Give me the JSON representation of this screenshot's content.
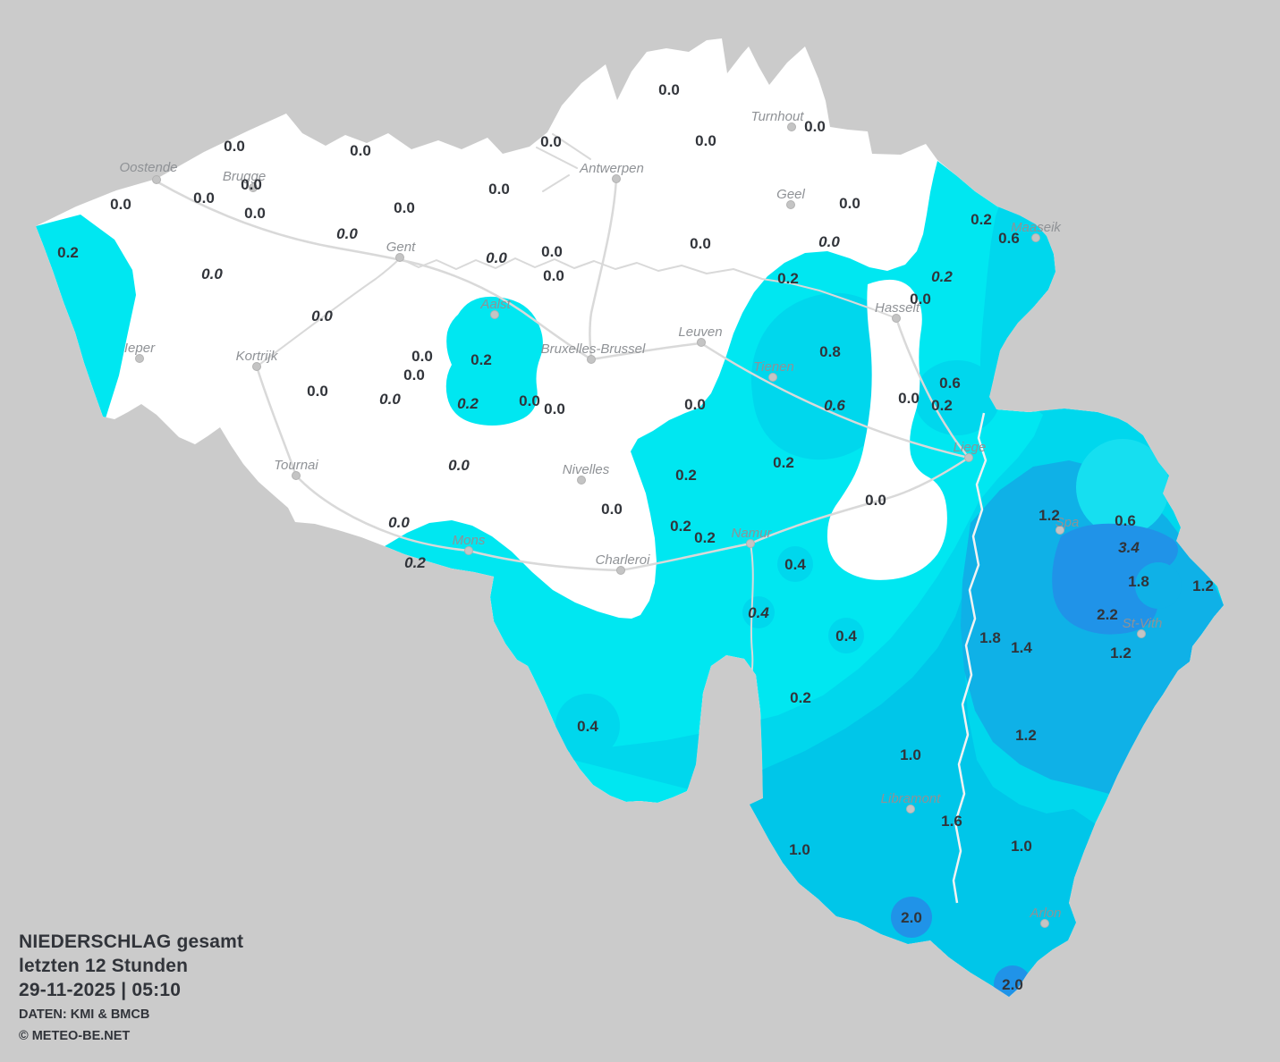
{
  "title_block": {
    "line1": "NIEDERSCHLAG gesamt",
    "line2": "letzten 12 Stunden",
    "line3": "29-11-2025  |  05:10",
    "line4": "DATEN: KMI & BMCB",
    "line5": "© METEO-BE.NET"
  },
  "colors": {
    "background": "#cbcbcb",
    "country": "#ffffff",
    "band02": "#00e7f1",
    "band06": "#00d7ed",
    "band06_light": "#16dff0",
    "band10": "#00c6e9",
    "band18": "#0fb1e7",
    "band34": "#2093e8",
    "value_text": "#31343a",
    "city_text": "#8f9296",
    "road": "#d9d9d9",
    "province_line": "#f2f2f2",
    "city_dot": "#c4c4c4"
  },
  "map": {
    "cities": [
      [
        "Oostende",
        175,
        201,
        166,
        192
      ],
      [
        "Brugge",
        283,
        210,
        273,
        202
      ],
      [
        "Turnhout",
        885,
        142,
        869,
        135
      ],
      [
        "Antwerpen",
        689,
        200,
        684,
        193
      ],
      [
        "Geel",
        884,
        229,
        884,
        222
      ],
      [
        "Maaseik",
        1158,
        266,
        1158,
        259
      ],
      [
        "Gent",
        447,
        288,
        448,
        281
      ],
      [
        "Hasselt",
        1002,
        356,
        1003,
        349
      ],
      [
        "Aalst",
        553,
        352,
        554,
        345
      ],
      [
        "Leuven",
        784,
        383,
        783,
        376
      ],
      [
        "Bruxelles-Brussel",
        661,
        402,
        663,
        395
      ],
      [
        "Ieper",
        156,
        401,
        156,
        394
      ],
      [
        "Kortrijk",
        287,
        410,
        287,
        403
      ],
      [
        "Tienen",
        864,
        422,
        865,
        415
      ],
      [
        "Liege",
        1083,
        512,
        1084,
        505
      ],
      [
        "Tournai",
        331,
        532,
        331,
        525
      ],
      [
        "Nivelles",
        650,
        537,
        655,
        530
      ],
      [
        "Spa",
        1185,
        593,
        1193,
        589
      ],
      [
        "Mons",
        524,
        616,
        524,
        609
      ],
      [
        "Namur",
        839,
        608,
        840,
        601
      ],
      [
        "Charleroi",
        694,
        638,
        696,
        631
      ],
      [
        "St-Vith",
        1276,
        709,
        1277,
        702
      ],
      [
        "Libramont",
        1018,
        905,
        1018,
        898
      ],
      [
        "Arlon",
        1168,
        1033,
        1169,
        1026
      ]
    ],
    "values": [
      [
        748,
        100,
        "0.0",
        0
      ],
      [
        911,
        141,
        "0.0",
        0
      ],
      [
        789,
        157,
        "0.0",
        0
      ],
      [
        262,
        163,
        "0.0",
        0
      ],
      [
        403,
        168,
        "0.0",
        0
      ],
      [
        616,
        158,
        "0.0",
        0
      ],
      [
        135,
        228,
        "0.0",
        0
      ],
      [
        228,
        221,
        "0.0",
        0
      ],
      [
        281,
        206,
        "0.0",
        0
      ],
      [
        285,
        238,
        "0.0",
        0
      ],
      [
        452,
        232,
        "0.0",
        0
      ],
      [
        558,
        211,
        "0.0",
        0
      ],
      [
        950,
        227,
        "0.0",
        0
      ],
      [
        1097,
        245,
        "0.2",
        0
      ],
      [
        1128,
        266,
        "0.6",
        0
      ],
      [
        388,
        261,
        "0.0",
        1
      ],
      [
        927,
        270,
        "0.0",
        1
      ],
      [
        783,
        272,
        "0.0",
        0
      ],
      [
        76,
        282,
        "0.2",
        0
      ],
      [
        237,
        306,
        "0.0",
        1
      ],
      [
        555,
        288,
        "0.0",
        1
      ],
      [
        617,
        281,
        "0.0",
        0
      ],
      [
        619,
        308,
        "0.0",
        0
      ],
      [
        1053,
        309,
        "0.2",
        1
      ],
      [
        881,
        311,
        "0.2",
        0
      ],
      [
        1029,
        334,
        "0.0",
        0
      ],
      [
        360,
        353,
        "0.0",
        1
      ],
      [
        472,
        398,
        "0.0",
        0
      ],
      [
        538,
        402,
        "0.2",
        0
      ],
      [
        463,
        419,
        "0.0",
        0
      ],
      [
        436,
        446,
        "0.0",
        1
      ],
      [
        523,
        451,
        "0.2",
        1
      ],
      [
        592,
        448,
        "0.0",
        0
      ],
      [
        620,
        457,
        "0.0",
        0
      ],
      [
        355,
        437,
        "0.0",
        0
      ],
      [
        1062,
        428,
        "0.6",
        0
      ],
      [
        1053,
        453,
        "0.2",
        0
      ],
      [
        928,
        393,
        "0.8",
        0
      ],
      [
        1016,
        445,
        "0.0",
        0
      ],
      [
        777,
        452,
        "0.0",
        0
      ],
      [
        933,
        453,
        "0.6",
        1
      ],
      [
        513,
        520,
        "0.0",
        1
      ],
      [
        767,
        531,
        "0.2",
        0
      ],
      [
        876,
        517,
        "0.2",
        0
      ],
      [
        684,
        569,
        "0.0",
        0
      ],
      [
        446,
        584,
        "0.0",
        1
      ],
      [
        464,
        629,
        "0.2",
        1
      ],
      [
        761,
        588,
        "0.2",
        0
      ],
      [
        788,
        601,
        "0.2",
        0
      ],
      [
        889,
        631,
        "0.4",
        0
      ],
      [
        848,
        685,
        "0.4",
        1
      ],
      [
        946,
        711,
        "0.4",
        0
      ],
      [
        979,
        559,
        "0.0",
        0
      ],
      [
        1173,
        576,
        "1.2",
        0
      ],
      [
        1258,
        582,
        "0.6",
        0
      ],
      [
        1262,
        612,
        "3.4",
        1
      ],
      [
        1273,
        650,
        "1.8",
        0
      ],
      [
        1345,
        655,
        "1.2",
        0
      ],
      [
        1238,
        687,
        "2.2",
        0
      ],
      [
        1107,
        713,
        "1.8",
        0
      ],
      [
        1142,
        724,
        "1.4",
        0
      ],
      [
        1253,
        730,
        "1.2",
        0
      ],
      [
        1147,
        822,
        "1.2",
        0
      ],
      [
        895,
        780,
        "0.2",
        0
      ],
      [
        657,
        812,
        "0.4",
        0
      ],
      [
        1018,
        844,
        "1.0",
        0
      ],
      [
        1064,
        918,
        "1.6",
        0
      ],
      [
        894,
        950,
        "1.0",
        0
      ],
      [
        1142,
        946,
        "1.0",
        0
      ],
      [
        1019,
        1026,
        "2.0",
        0
      ],
      [
        1132,
        1101,
        "2.0",
        0
      ]
    ]
  }
}
